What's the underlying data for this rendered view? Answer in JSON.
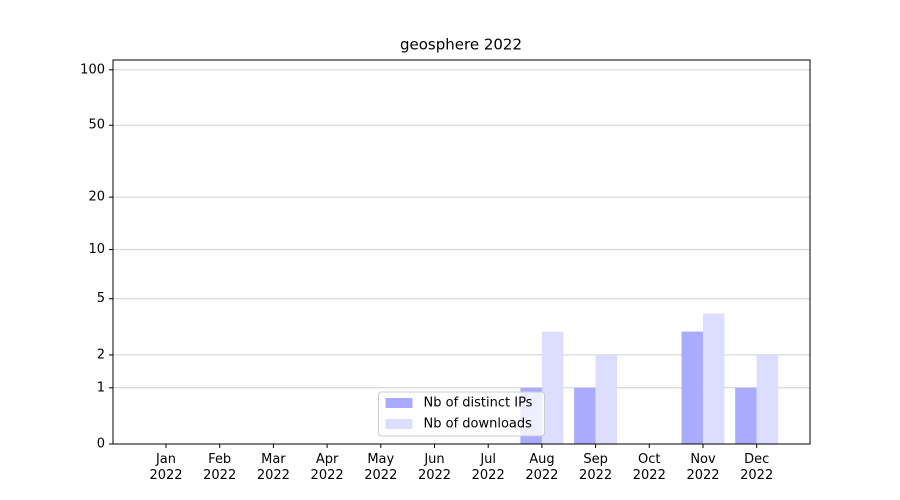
{
  "chart_data": {
    "type": "bar",
    "title": "geosphere 2022",
    "categories": [
      "Jan\n2022",
      "Feb\n2022",
      "Mar\n2022",
      "Apr\n2022",
      "May\n2022",
      "Jun\n2022",
      "Jul\n2022",
      "Aug\n2022",
      "Sep\n2022",
      "Oct\n2022",
      "Nov\n2022",
      "Dec\n2022"
    ],
    "series": [
      {
        "name": "Nb of distinct IPs",
        "color": "#aaaaff",
        "values": [
          0,
          0,
          0,
          0,
          0,
          0,
          0,
          1,
          1,
          0,
          3,
          1
        ]
      },
      {
        "name": "Nb of downloads",
        "color": "#ddddff",
        "values": [
          0,
          0,
          0,
          0,
          0,
          0,
          0,
          3,
          2,
          0,
          4,
          2
        ]
      }
    ],
    "yscale": "log1p",
    "ylim": [
      0,
      113
    ],
    "yticks": [
      0,
      1,
      2,
      5,
      10,
      20,
      50,
      100
    ],
    "grid": true,
    "legend": "lower center"
  }
}
